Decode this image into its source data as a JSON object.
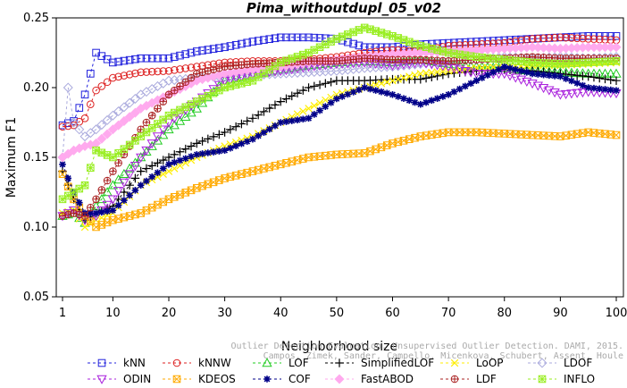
{
  "chart_data": {
    "type": "line",
    "title": "Pima_withoutdupl_05_v02",
    "xlabel": "Neighborhood size",
    "ylabel": "Maximum F1",
    "xlim": [
      1,
      100
    ],
    "ylim": [
      0.05,
      0.25
    ],
    "x_ticks": [
      "1",
      "10",
      "20",
      "30",
      "40",
      "50",
      "60",
      "70",
      "80",
      "90",
      "100"
    ],
    "y_ticks": [
      "0.05",
      "0.10",
      "0.15",
      "0.20",
      "0.25"
    ],
    "grid": false,
    "legend_position": "bottom",
    "credit": [
      "Outlier Detection Evaluation. Unsupervised Outlier Detection. DAMI, 2015.",
      "Campos, Zimek, Sander, Campello, Micenkova, Schubert, Assent, Houle"
    ],
    "series": [
      {
        "name": "kNN",
        "color": "#2222dd",
        "marker": "square",
        "dash": "3,3",
        "points": [
          [
            1,
            0.173
          ],
          [
            3,
            0.176
          ],
          [
            5,
            0.195
          ],
          [
            7,
            0.225
          ],
          [
            10,
            0.218
          ],
          [
            15,
            0.221
          ],
          [
            20,
            0.221
          ],
          [
            25,
            0.226
          ],
          [
            30,
            0.229
          ],
          [
            35,
            0.233
          ],
          [
            40,
            0.236
          ],
          [
            45,
            0.236
          ],
          [
            50,
            0.235
          ],
          [
            55,
            0.229
          ],
          [
            60,
            0.229
          ],
          [
            65,
            0.231
          ],
          [
            70,
            0.232
          ],
          [
            75,
            0.233
          ],
          [
            80,
            0.234
          ],
          [
            85,
            0.235
          ],
          [
            90,
            0.236
          ],
          [
            95,
            0.237
          ],
          [
            100,
            0.237
          ]
        ]
      },
      {
        "name": "kNNW",
        "color": "#dd2222",
        "marker": "circle",
        "dash": "3,3",
        "points": [
          [
            1,
            0.172
          ],
          [
            3,
            0.173
          ],
          [
            5,
            0.178
          ],
          [
            7,
            0.198
          ],
          [
            10,
            0.207
          ],
          [
            15,
            0.211
          ],
          [
            20,
            0.212
          ],
          [
            25,
            0.215
          ],
          [
            30,
            0.218
          ],
          [
            35,
            0.219
          ],
          [
            40,
            0.219
          ],
          [
            45,
            0.22
          ],
          [
            50,
            0.222
          ],
          [
            55,
            0.225
          ],
          [
            60,
            0.227
          ],
          [
            65,
            0.226
          ],
          [
            70,
            0.23
          ],
          [
            75,
            0.231
          ],
          [
            80,
            0.232
          ],
          [
            85,
            0.235
          ],
          [
            90,
            0.236
          ],
          [
            95,
            0.235
          ],
          [
            100,
            0.234
          ]
        ]
      },
      {
        "name": "LOF",
        "color": "#22cc22",
        "marker": "triangle-up",
        "dash": "3,3",
        "points": [
          [
            1,
            0.108
          ],
          [
            3,
            0.11
          ],
          [
            5,
            0.103
          ],
          [
            7,
            0.115
          ],
          [
            10,
            0.13
          ],
          [
            15,
            0.15
          ],
          [
            20,
            0.17
          ],
          [
            25,
            0.185
          ],
          [
            30,
            0.205
          ],
          [
            35,
            0.209
          ],
          [
            40,
            0.213
          ],
          [
            45,
            0.216
          ],
          [
            50,
            0.218
          ],
          [
            55,
            0.219
          ],
          [
            60,
            0.218
          ],
          [
            65,
            0.22
          ],
          [
            70,
            0.217
          ],
          [
            75,
            0.215
          ],
          [
            80,
            0.214
          ],
          [
            85,
            0.212
          ],
          [
            90,
            0.211
          ],
          [
            95,
            0.21
          ],
          [
            100,
            0.21
          ]
        ]
      },
      {
        "name": "SimplifiedLOF",
        "color": "#000000",
        "marker": "plus",
        "dash": "3,3",
        "points": [
          [
            1,
            0.14
          ],
          [
            3,
            0.12
          ],
          [
            5,
            0.105
          ],
          [
            7,
            0.11
          ],
          [
            10,
            0.115
          ],
          [
            15,
            0.14
          ],
          [
            20,
            0.15
          ],
          [
            25,
            0.16
          ],
          [
            30,
            0.168
          ],
          [
            35,
            0.178
          ],
          [
            40,
            0.19
          ],
          [
            45,
            0.2
          ],
          [
            50,
            0.205
          ],
          [
            55,
            0.205
          ],
          [
            60,
            0.206
          ],
          [
            65,
            0.206
          ],
          [
            70,
            0.21
          ],
          [
            75,
            0.212
          ],
          [
            80,
            0.213
          ],
          [
            85,
            0.212
          ],
          [
            90,
            0.21
          ],
          [
            95,
            0.208
          ],
          [
            100,
            0.205
          ]
        ]
      },
      {
        "name": "LoOP",
        "color": "#ffee00",
        "marker": "x",
        "dash": "3,3",
        "points": [
          [
            1,
            0.11
          ],
          [
            3,
            0.112
          ],
          [
            5,
            0.1
          ],
          [
            7,
            0.105
          ],
          [
            10,
            0.11
          ],
          [
            15,
            0.13
          ],
          [
            20,
            0.14
          ],
          [
            25,
            0.15
          ],
          [
            30,
            0.158
          ],
          [
            35,
            0.165
          ],
          [
            40,
            0.175
          ],
          [
            45,
            0.185
          ],
          [
            50,
            0.195
          ],
          [
            55,
            0.2
          ],
          [
            60,
            0.205
          ],
          [
            65,
            0.21
          ],
          [
            70,
            0.212
          ],
          [
            75,
            0.214
          ],
          [
            80,
            0.215
          ],
          [
            85,
            0.216
          ],
          [
            90,
            0.216
          ],
          [
            95,
            0.217
          ],
          [
            100,
            0.218
          ]
        ]
      },
      {
        "name": "LDOF",
        "color": "#aaaadd",
        "marker": "diamond",
        "dash": "3,3",
        "points": [
          [
            1,
            0.15
          ],
          [
            2,
            0.2
          ],
          [
            3,
            0.175
          ],
          [
            5,
            0.165
          ],
          [
            7,
            0.17
          ],
          [
            10,
            0.18
          ],
          [
            15,
            0.195
          ],
          [
            20,
            0.205
          ],
          [
            25,
            0.207
          ],
          [
            30,
            0.208
          ],
          [
            35,
            0.209
          ],
          [
            40,
            0.21
          ],
          [
            45,
            0.211
          ],
          [
            50,
            0.212
          ],
          [
            55,
            0.214
          ],
          [
            60,
            0.215
          ],
          [
            65,
            0.217
          ],
          [
            70,
            0.219
          ],
          [
            75,
            0.22
          ],
          [
            80,
            0.222
          ],
          [
            85,
            0.221
          ],
          [
            90,
            0.222
          ],
          [
            95,
            0.221
          ],
          [
            100,
            0.222
          ]
        ]
      },
      {
        "name": "ODIN",
        "color": "#aa22dd",
        "marker": "triangle-down",
        "dash": "3,3",
        "points": [
          [
            1,
            0.108
          ],
          [
            3,
            0.112
          ],
          [
            5,
            0.105
          ],
          [
            7,
            0.108
          ],
          [
            10,
            0.12
          ],
          [
            15,
            0.15
          ],
          [
            20,
            0.175
          ],
          [
            25,
            0.19
          ],
          [
            30,
            0.205
          ],
          [
            35,
            0.21
          ],
          [
            40,
            0.212
          ],
          [
            45,
            0.215
          ],
          [
            50,
            0.217
          ],
          [
            55,
            0.218
          ],
          [
            60,
            0.216
          ],
          [
            65,
            0.218
          ],
          [
            70,
            0.215
          ],
          [
            75,
            0.21
          ],
          [
            80,
            0.21
          ],
          [
            85,
            0.203
          ],
          [
            90,
            0.195
          ],
          [
            95,
            0.197
          ],
          [
            100,
            0.196
          ]
        ]
      },
      {
        "name": "KDEOS",
        "color": "#ffaa00",
        "marker": "square-x",
        "dash": "3,3",
        "points": [
          [
            1,
            0.138
          ],
          [
            3,
            0.12
          ],
          [
            5,
            0.108
          ],
          [
            7,
            0.1
          ],
          [
            10,
            0.105
          ],
          [
            15,
            0.11
          ],
          [
            20,
            0.12
          ],
          [
            25,
            0.128
          ],
          [
            30,
            0.135
          ],
          [
            35,
            0.14
          ],
          [
            40,
            0.145
          ],
          [
            45,
            0.15
          ],
          [
            50,
            0.152
          ],
          [
            55,
            0.153
          ],
          [
            60,
            0.16
          ],
          [
            65,
            0.165
          ],
          [
            70,
            0.168
          ],
          [
            75,
            0.168
          ],
          [
            80,
            0.167
          ],
          [
            85,
            0.166
          ],
          [
            90,
            0.165
          ],
          [
            95,
            0.168
          ],
          [
            100,
            0.166
          ]
        ]
      },
      {
        "name": "COF",
        "color": "#000088",
        "marker": "star",
        "dash": "3,3",
        "points": [
          [
            1,
            0.145
          ],
          [
            3,
            0.125
          ],
          [
            5,
            0.11
          ],
          [
            7,
            0.11
          ],
          [
            10,
            0.112
          ],
          [
            15,
            0.13
          ],
          [
            20,
            0.145
          ],
          [
            25,
            0.152
          ],
          [
            30,
            0.155
          ],
          [
            35,
            0.163
          ],
          [
            40,
            0.175
          ],
          [
            45,
            0.178
          ],
          [
            50,
            0.192
          ],
          [
            55,
            0.2
          ],
          [
            60,
            0.195
          ],
          [
            65,
            0.188
          ],
          [
            70,
            0.195
          ],
          [
            75,
            0.205
          ],
          [
            80,
            0.215
          ],
          [
            85,
            0.21
          ],
          [
            90,
            0.208
          ],
          [
            95,
            0.2
          ],
          [
            100,
            0.198
          ]
        ]
      },
      {
        "name": "FastABOD",
        "color": "#ffaaee",
        "marker": "diamond-filled",
        "dash": "3,3",
        "points": [
          [
            1,
            0.15
          ],
          [
            3,
            0.155
          ],
          [
            5,
            0.158
          ],
          [
            7,
            0.16
          ],
          [
            10,
            0.17
          ],
          [
            15,
            0.185
          ],
          [
            20,
            0.195
          ],
          [
            25,
            0.205
          ],
          [
            30,
            0.21
          ],
          [
            35,
            0.213
          ],
          [
            40,
            0.215
          ],
          [
            45,
            0.218
          ],
          [
            50,
            0.22
          ],
          [
            55,
            0.222
          ],
          [
            60,
            0.224
          ],
          [
            65,
            0.225
          ],
          [
            70,
            0.226
          ],
          [
            75,
            0.227
          ],
          [
            80,
            0.228
          ],
          [
            85,
            0.229
          ],
          [
            90,
            0.228
          ],
          [
            95,
            0.229
          ],
          [
            100,
            0.229
          ]
        ]
      },
      {
        "name": "LDF",
        "color": "#aa2222",
        "marker": "circle-plus",
        "dash": "3,3",
        "points": [
          [
            1,
            0.108
          ],
          [
            3,
            0.11
          ],
          [
            5,
            0.108
          ],
          [
            7,
            0.12
          ],
          [
            10,
            0.14
          ],
          [
            15,
            0.17
          ],
          [
            20,
            0.195
          ],
          [
            25,
            0.21
          ],
          [
            30,
            0.215
          ],
          [
            35,
            0.217
          ],
          [
            40,
            0.218
          ],
          [
            45,
            0.219
          ],
          [
            50,
            0.219
          ],
          [
            55,
            0.221
          ],
          [
            60,
            0.22
          ],
          [
            65,
            0.22
          ],
          [
            70,
            0.219
          ],
          [
            75,
            0.22
          ],
          [
            80,
            0.221
          ],
          [
            85,
            0.222
          ],
          [
            90,
            0.221
          ],
          [
            95,
            0.221
          ],
          [
            100,
            0.221
          ]
        ]
      },
      {
        "name": "INFLO",
        "color": "#99ee22",
        "marker": "square-star",
        "dash": "3,3",
        "points": [
          [
            1,
            0.12
          ],
          [
            3,
            0.125
          ],
          [
            5,
            0.13
          ],
          [
            7,
            0.155
          ],
          [
            10,
            0.15
          ],
          [
            15,
            0.165
          ],
          [
            20,
            0.18
          ],
          [
            25,
            0.19
          ],
          [
            30,
            0.2
          ],
          [
            35,
            0.205
          ],
          [
            40,
            0.218
          ],
          [
            45,
            0.225
          ],
          [
            50,
            0.235
          ],
          [
            55,
            0.243
          ],
          [
            60,
            0.237
          ],
          [
            65,
            0.23
          ],
          [
            70,
            0.225
          ],
          [
            75,
            0.222
          ],
          [
            80,
            0.22
          ],
          [
            85,
            0.218
          ],
          [
            90,
            0.217
          ],
          [
            95,
            0.218
          ],
          [
            100,
            0.219
          ]
        ]
      }
    ]
  }
}
